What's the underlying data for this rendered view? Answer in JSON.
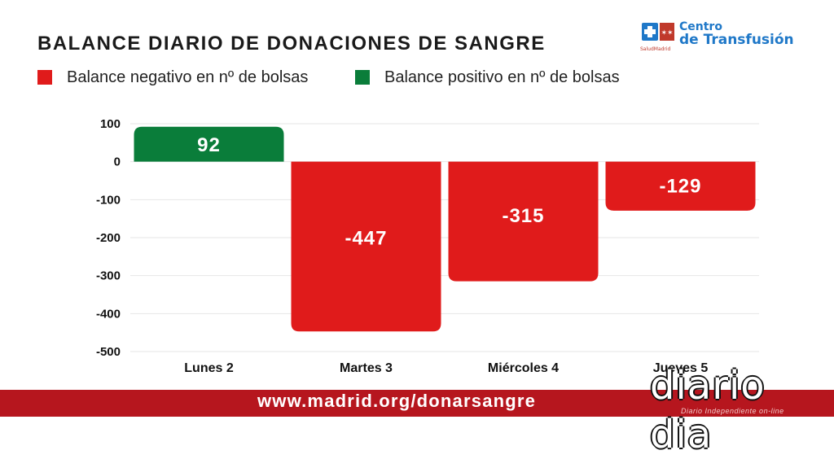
{
  "title": "BALANCE DIARIO DE DONACIONES DE SANGRE",
  "legend": [
    {
      "label": "Balance negativo en nº de bolsas",
      "color": "#e01b1b"
    },
    {
      "label": "Balance positivo en nº de bolsas",
      "color": "#0a7d3a"
    }
  ],
  "brand": {
    "line1": "Centro",
    "line2": "de Transfusión",
    "sub": "SaludMadrid"
  },
  "footer": {
    "url": "www.madrid.org/donarsangre",
    "color": "#b6161e"
  },
  "watermark": {
    "name": "diario dia",
    "tagline": "Diario Independiente on-line"
  },
  "chart_data": {
    "type": "bar",
    "title": "BALANCE DIARIO DE DONACIONES DE SANGRE",
    "categories": [
      "Lunes 2",
      "Martes 3",
      "Miércoles 4",
      "Jueves 5"
    ],
    "values": [
      92,
      -447,
      -315,
      -129
    ],
    "value_labels": [
      "92",
      "-447",
      "-315",
      "-129"
    ],
    "ylim": [
      -500,
      100
    ],
    "yticks": [
      100,
      0,
      -100,
      -200,
      -300,
      -400,
      -500
    ],
    "ytick_labels": [
      "100",
      "0",
      "-100",
      "-200",
      "-300",
      "-400",
      "-500"
    ],
    "grid": true,
    "legend_position": "top-left",
    "positive_color": "#0a7d3a",
    "negative_color": "#e01b1b",
    "xlabel": "",
    "ylabel": ""
  }
}
